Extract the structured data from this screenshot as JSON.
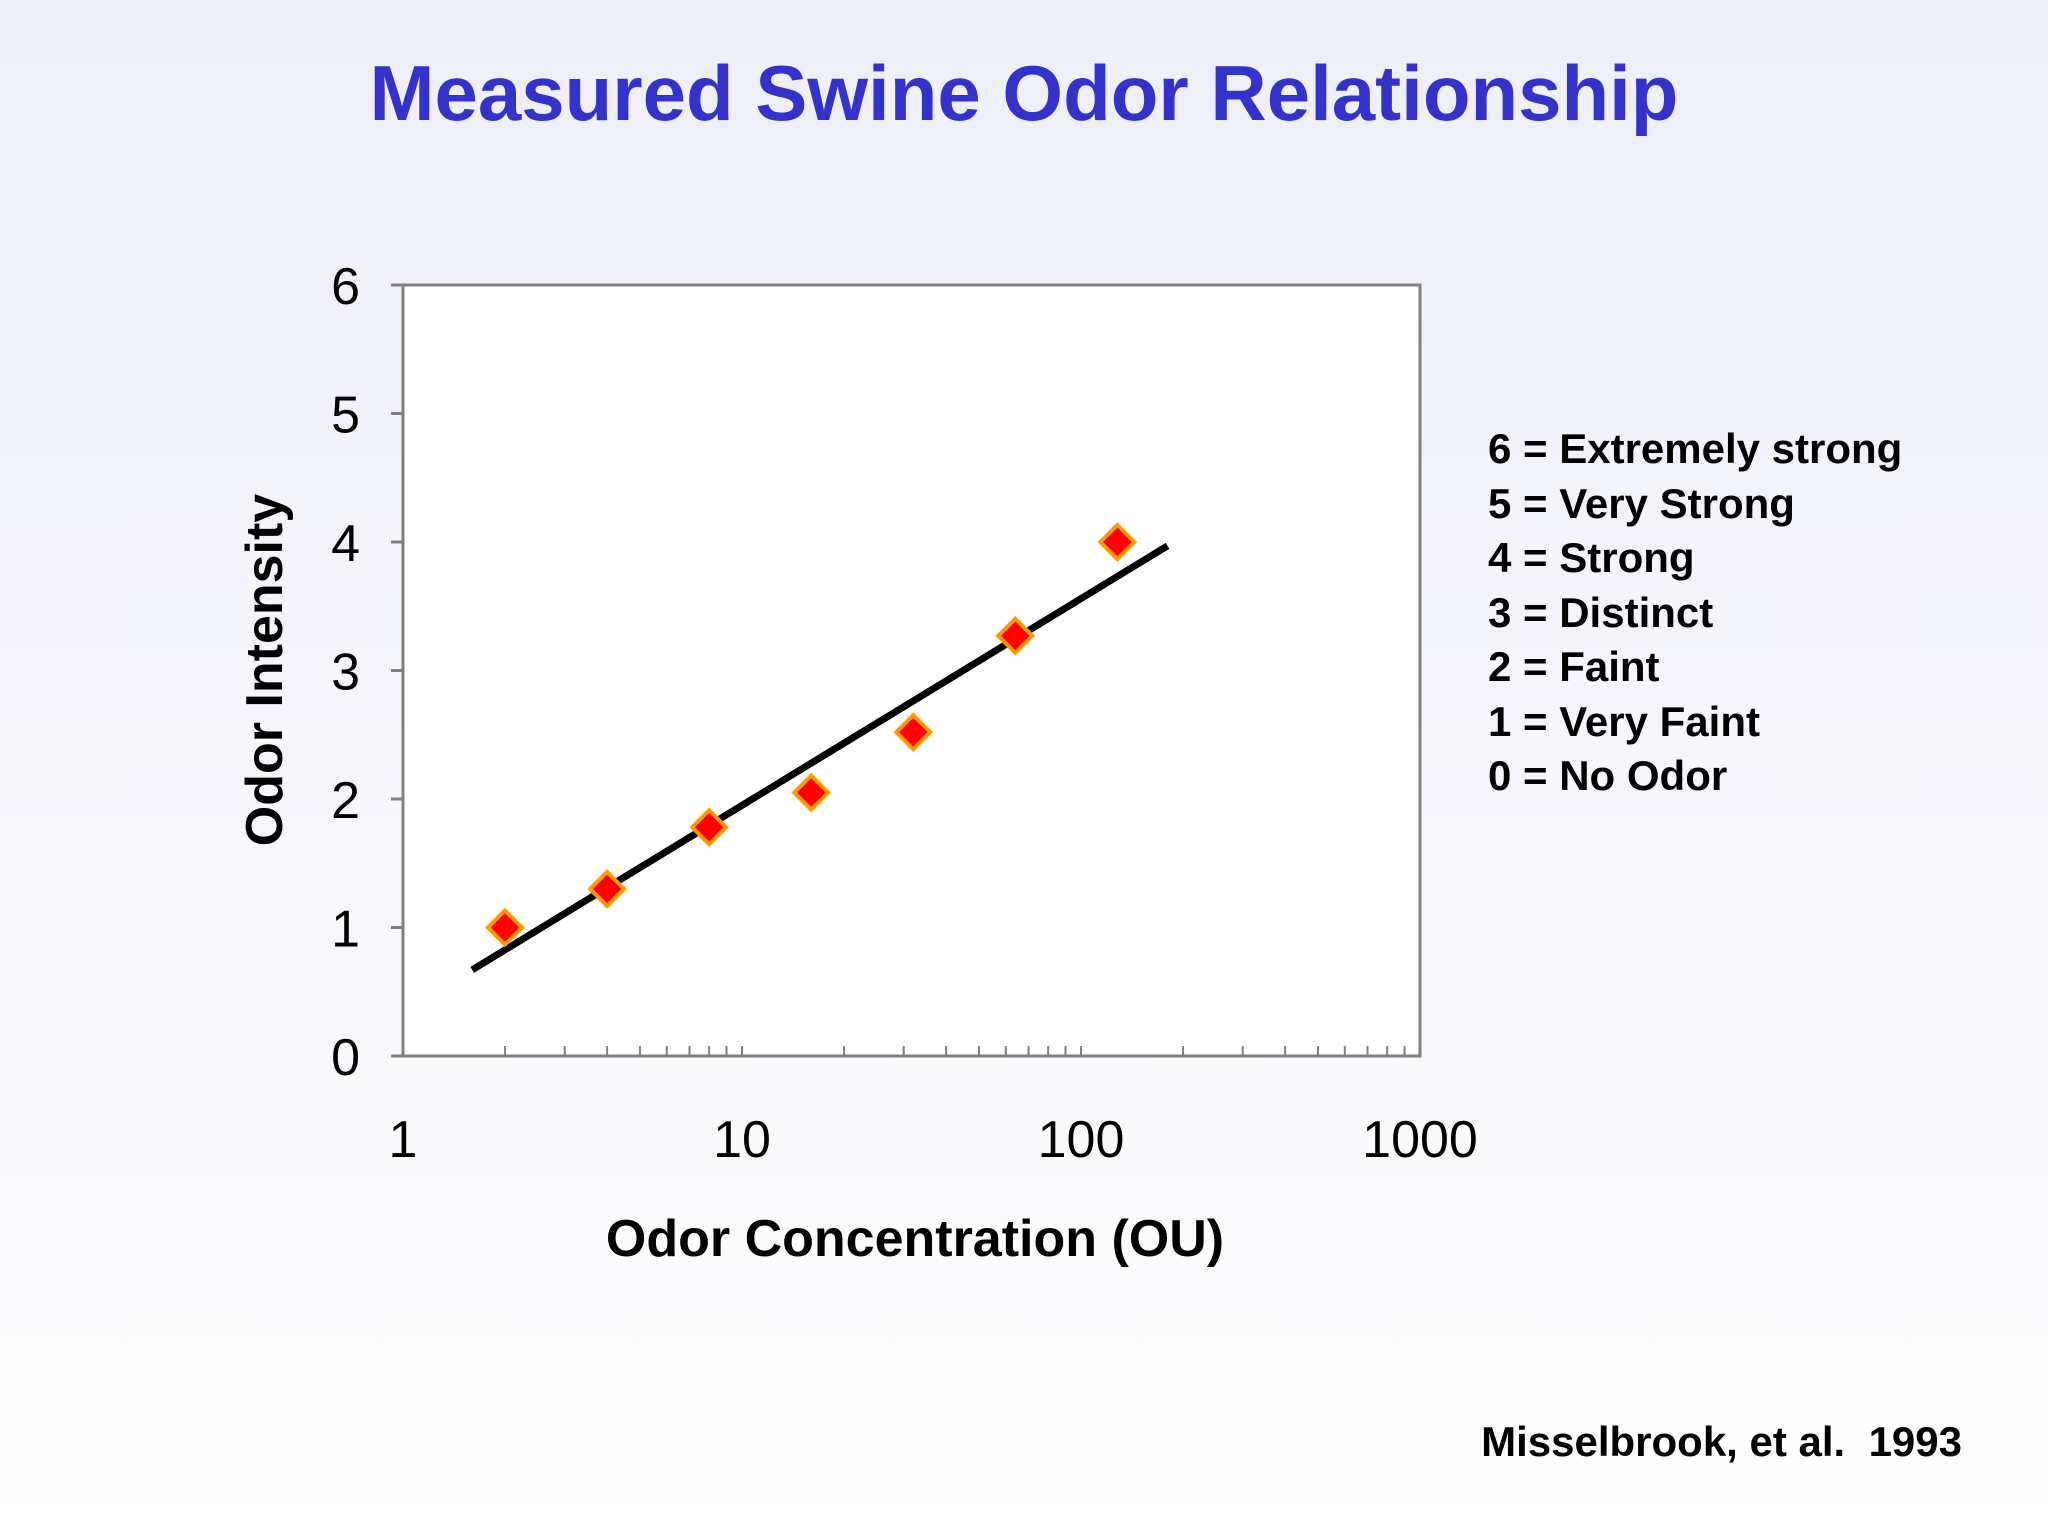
{
  "slide": {
    "title": "Measured Swine Odor Relationship",
    "citation": "Misselbrook, et al.  1993"
  },
  "scale_legend": [
    "6 = Extremely strong",
    "5 = Very Strong",
    "4 = Strong",
    "3 = Distinct",
    "2 = Faint",
    "1 = Very Faint",
    "0 = No Odor"
  ],
  "chart_data": {
    "type": "scatter",
    "title": "",
    "xlabel": "Odor Concentration (OU)",
    "ylabel": "Odor Intensity",
    "x_scale": "log",
    "xlim": [
      1,
      1000
    ],
    "ylim": [
      0,
      6
    ],
    "x_ticks": [
      {
        "value": 1,
        "label": "1"
      },
      {
        "value": 10,
        "label": "10"
      },
      {
        "value": 100,
        "label": "100"
      },
      {
        "value": 1000,
        "label": "1000"
      }
    ],
    "y_ticks": [
      {
        "value": 0,
        "label": "0"
      },
      {
        "value": 1,
        "label": "1"
      },
      {
        "value": 2,
        "label": "2"
      },
      {
        "value": 3,
        "label": "3"
      },
      {
        "value": 4,
        "label": "4"
      },
      {
        "value": 5,
        "label": "5"
      },
      {
        "value": 6,
        "label": "6"
      }
    ],
    "grid": false,
    "points": [
      {
        "x": 2,
        "y": 1.0
      },
      {
        "x": 4,
        "y": 1.3
      },
      {
        "x": 8,
        "y": 1.78
      },
      {
        "x": 16,
        "y": 2.05
      },
      {
        "x": 32,
        "y": 2.52
      },
      {
        "x": 64,
        "y": 3.27
      },
      {
        "x": 128,
        "y": 4.0
      }
    ],
    "trendline": {
      "from": {
        "x": 1.6,
        "y": 0.67
      },
      "to": {
        "x": 180,
        "y": 3.97
      }
    },
    "colors": {
      "marker_fill": "#ff0000",
      "marker_edge": "#ff9900",
      "trendline": "#000000",
      "frame": "#808080",
      "plot_background": "#ffffff",
      "title": "#3333cc"
    }
  }
}
